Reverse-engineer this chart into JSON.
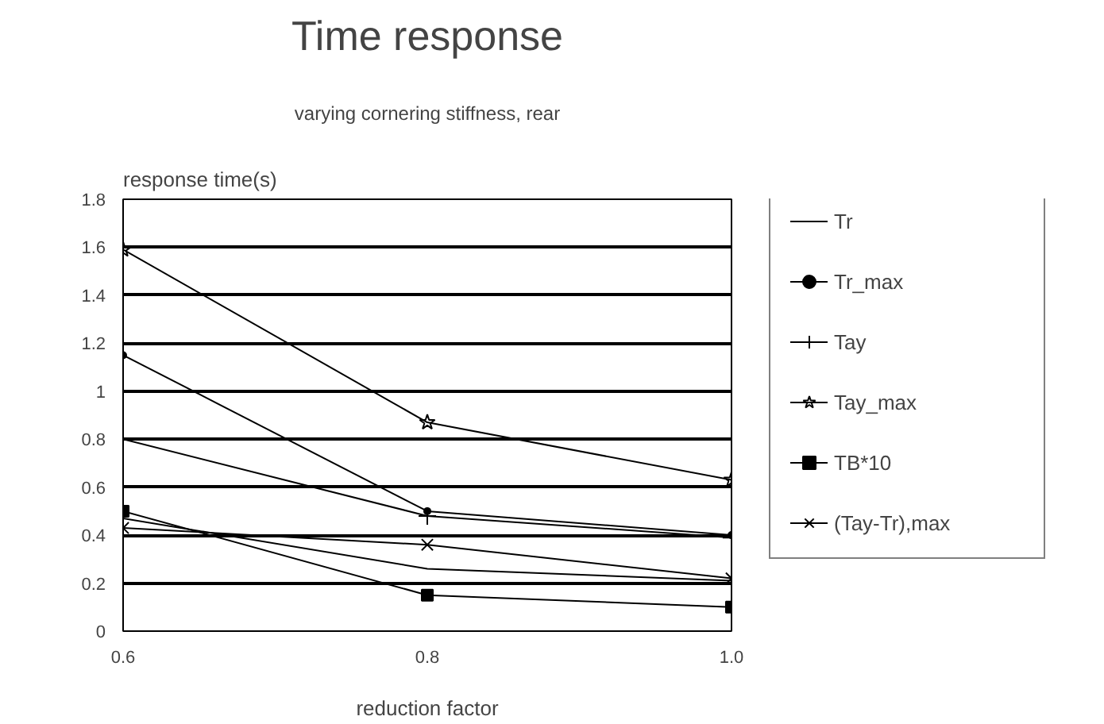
{
  "chart_data": {
    "type": "line",
    "title": "Time response",
    "subtitle": "varying cornering stiffness, rear",
    "xlabel": "reduction factor",
    "ylabel": "response time(s)",
    "x": [
      0.6,
      0.8,
      1.0
    ],
    "xlim": [
      0.6,
      1.0
    ],
    "xticks": [
      0.6,
      0.8,
      {
        "value": 1.0,
        "label": "1.0"
      }
    ],
    "ylim": [
      0,
      1.8
    ],
    "yticks": [
      0,
      0.2,
      0.4,
      0.6,
      0.8,
      1,
      1.2,
      1.4,
      1.6,
      1.8
    ],
    "grid": "y",
    "legend": "right",
    "series": [
      {
        "name": "Tr",
        "color": "#000000",
        "marker": "none",
        "values": [
          0.47,
          0.26,
          0.21
        ]
      },
      {
        "name": "Tr_max",
        "color": "#000000",
        "marker": "circle",
        "values": [
          1.15,
          0.5,
          0.4
        ]
      },
      {
        "name": "Tay",
        "color": "#000000",
        "marker": "cross",
        "values": [
          0.8,
          0.48,
          0.39
        ]
      },
      {
        "name": "Tay_max",
        "color": "#000000",
        "marker": "star",
        "values": [
          1.59,
          0.87,
          0.63
        ]
      },
      {
        "name": "TB*10",
        "color": "#000000",
        "marker": "square",
        "values": [
          0.5,
          0.15,
          0.1
        ]
      },
      {
        "name": "(Tay-Tr),max",
        "color": "#000000",
        "marker": "x",
        "values": [
          0.43,
          0.36,
          0.22
        ]
      }
    ]
  }
}
